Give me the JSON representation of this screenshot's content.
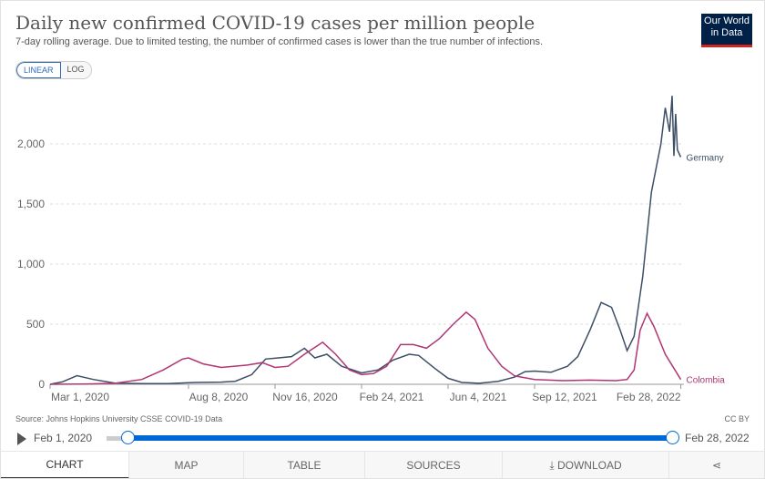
{
  "header": {
    "title": "Daily new confirmed COVID-19 cases per million people",
    "subtitle": "7-day rolling average. Due to limited testing, the number of confirmed cases is lower than the true number of infections.",
    "logo": "Our World in Data",
    "logo_line1": "Our World",
    "logo_line2": "in Data",
    "linear": "LINEAR",
    "log": "LOG"
  },
  "chart_data": {
    "type": "line",
    "title": "Daily new confirmed COVID-19 cases per million people",
    "ylim": [
      0,
      2400
    ],
    "yticks": [
      {
        "v": 0,
        "label": "0"
      },
      {
        "v": 500,
        "label": "500"
      },
      {
        "v": 1000,
        "label": "1,000"
      },
      {
        "v": 1500,
        "label": "1,500"
      },
      {
        "v": 2000,
        "label": "2,000"
      }
    ],
    "xticks": [
      {
        "d": "2020-03-01",
        "label": "Mar 1, 2020"
      },
      {
        "d": "2020-08-08",
        "label": "Aug 8, 2020"
      },
      {
        "d": "2020-11-16",
        "label": "Nov 16, 2020"
      },
      {
        "d": "2021-02-24",
        "label": "Feb 24, 2021"
      },
      {
        "d": "2021-06-04",
        "label": "Jun 4, 2021"
      },
      {
        "d": "2021-09-12",
        "label": "Sep 12, 2021"
      },
      {
        "d": "2022-02-28",
        "label": "Feb 28, 2022"
      }
    ],
    "series": [
      {
        "name": "Germany",
        "color": "#3c4e66",
        "points": [
          [
            "2020-03-01",
            0
          ],
          [
            "2020-03-15",
            20
          ],
          [
            "2020-04-01",
            72
          ],
          [
            "2020-04-20",
            40
          ],
          [
            "2020-05-15",
            10
          ],
          [
            "2020-06-15",
            5
          ],
          [
            "2020-07-15",
            5
          ],
          [
            "2020-08-15",
            15
          ],
          [
            "2020-09-15",
            18
          ],
          [
            "2020-10-01",
            25
          ],
          [
            "2020-10-20",
            80
          ],
          [
            "2020-11-05",
            210
          ],
          [
            "2020-11-20",
            220
          ],
          [
            "2020-12-05",
            230
          ],
          [
            "2020-12-20",
            300
          ],
          [
            "2021-01-01",
            220
          ],
          [
            "2021-01-15",
            250
          ],
          [
            "2021-02-01",
            150
          ],
          [
            "2021-02-24",
            95
          ],
          [
            "2021-03-15",
            120
          ],
          [
            "2021-04-01",
            200
          ],
          [
            "2021-04-20",
            250
          ],
          [
            "2021-05-01",
            240
          ],
          [
            "2021-05-20",
            130
          ],
          [
            "2021-06-04",
            50
          ],
          [
            "2021-06-20",
            15
          ],
          [
            "2021-07-10",
            8
          ],
          [
            "2021-08-01",
            25
          ],
          [
            "2021-08-20",
            60
          ],
          [
            "2021-09-01",
            105
          ],
          [
            "2021-09-12",
            110
          ],
          [
            "2021-10-01",
            100
          ],
          [
            "2021-10-20",
            150
          ],
          [
            "2021-11-01",
            230
          ],
          [
            "2021-11-15",
            450
          ],
          [
            "2021-11-28",
            680
          ],
          [
            "2021-12-10",
            640
          ],
          [
            "2021-12-20",
            450
          ],
          [
            "2021-12-28",
            280
          ],
          [
            "2022-01-05",
            400
          ],
          [
            "2022-01-15",
            900
          ],
          [
            "2022-01-25",
            1600
          ],
          [
            "2022-02-05",
            2000
          ],
          [
            "2022-02-10",
            2300
          ],
          [
            "2022-02-15",
            2100
          ],
          [
            "2022-02-18",
            2400
          ],
          [
            "2022-02-20",
            1900
          ],
          [
            "2022-02-22",
            2250
          ],
          [
            "2022-02-24",
            1950
          ],
          [
            "2022-02-28",
            1890
          ]
        ]
      },
      {
        "name": "Colombia",
        "color": "#b13573",
        "points": [
          [
            "2020-03-01",
            0
          ],
          [
            "2020-04-15",
            3
          ],
          [
            "2020-05-15",
            8
          ],
          [
            "2020-06-15",
            40
          ],
          [
            "2020-07-10",
            120
          ],
          [
            "2020-08-01",
            210
          ],
          [
            "2020-08-08",
            220
          ],
          [
            "2020-08-25",
            170
          ],
          [
            "2020-09-15",
            140
          ],
          [
            "2020-10-15",
            160
          ],
          [
            "2020-11-01",
            180
          ],
          [
            "2020-11-16",
            140
          ],
          [
            "2020-12-01",
            150
          ],
          [
            "2020-12-20",
            250
          ],
          [
            "2021-01-10",
            350
          ],
          [
            "2021-01-25",
            250
          ],
          [
            "2021-02-10",
            120
          ],
          [
            "2021-02-24",
            80
          ],
          [
            "2021-03-10",
            90
          ],
          [
            "2021-03-25",
            150
          ],
          [
            "2021-04-10",
            330
          ],
          [
            "2021-04-25",
            330
          ],
          [
            "2021-05-10",
            300
          ],
          [
            "2021-05-25",
            380
          ],
          [
            "2021-06-10",
            500
          ],
          [
            "2021-06-25",
            600
          ],
          [
            "2021-07-05",
            540
          ],
          [
            "2021-07-20",
            300
          ],
          [
            "2021-08-05",
            150
          ],
          [
            "2021-08-20",
            70
          ],
          [
            "2021-09-12",
            40
          ],
          [
            "2021-10-15",
            30
          ],
          [
            "2021-11-15",
            35
          ],
          [
            "2021-12-15",
            30
          ],
          [
            "2021-12-28",
            40
          ],
          [
            "2022-01-05",
            120
          ],
          [
            "2022-01-12",
            450
          ],
          [
            "2022-01-20",
            590
          ],
          [
            "2022-01-28",
            480
          ],
          [
            "2022-02-10",
            250
          ],
          [
            "2022-02-28",
            40
          ]
        ]
      }
    ]
  },
  "footer": {
    "source": "Source: Johns Hopkins University CSSE COVID-19 Data",
    "license": "CC BY",
    "start_date": "Feb 1, 2020",
    "end_date": "Feb 28, 2022"
  },
  "tabs": [
    "CHART",
    "MAP",
    "TABLE",
    "SOURCES",
    "DOWNLOAD"
  ]
}
